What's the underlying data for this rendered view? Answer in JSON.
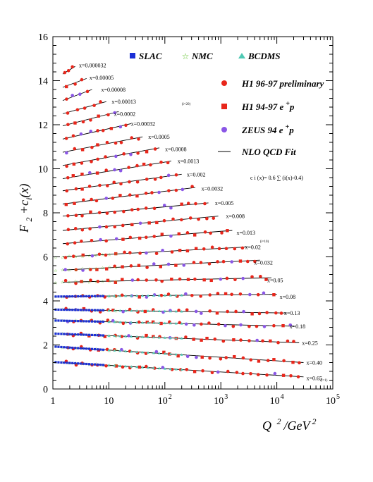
{
  "chart_data": {
    "type": "scatter",
    "xscale": "log",
    "yscale": "linear",
    "xlim": [
      1,
      100000
    ],
    "ylim": [
      0,
      16
    ],
    "ylabel": "F 2 + c i (x)",
    "xlabel": "Q 2 /GeV 2",
    "y_ticks": [
      "0",
      "2",
      "4",
      "6",
      "8",
      "10",
      "12",
      "14",
      "16"
    ],
    "x_ticks": [
      {
        "base": "1",
        "exp": ""
      },
      {
        "base": "10",
        "exp": ""
      },
      {
        "base": "10",
        "exp": "2"
      },
      {
        "base": "10",
        "exp": "3"
      },
      {
        "base": "10",
        "exp": "4"
      },
      {
        "base": "10",
        "exp": "5"
      }
    ],
    "offset_formula": "c i (x)= 0.6 ∑ (i(x)-0.4)",
    "annotations": [
      {
        "text": "(i=20)",
        "x": 200,
        "y": 12.9
      },
      {
        "text": "(i=10)",
        "x": 5000,
        "y": 6.65
      },
      {
        "text": "(i=1)",
        "x": 60000,
        "y": 0.35
      }
    ],
    "legend": {
      "row1": [
        {
          "label": "SLAC",
          "marker": "square",
          "color": "#1b2fd6"
        },
        {
          "label": "NMC",
          "marker": "star",
          "color": "#58c020"
        },
        {
          "label": "BCDMS",
          "marker": "triangle",
          "color": "#4fc9b4"
        }
      ],
      "column": [
        {
          "label": "H1 96-97 preliminary",
          "marker": "circle",
          "color": "#e8261b"
        },
        {
          "label": "H1 94-97 e +p",
          "marker": "square",
          "color": "#e8261b"
        },
        {
          "label": "ZEUS 94 e +p",
          "marker": "circle",
          "color": "#8a56e6"
        },
        {
          "label": "NLO QCD Fit",
          "marker": "line",
          "color": "#000000"
        }
      ]
    },
    "colors": {
      "H1_96_97": "#e8261b",
      "H1_94_97": "#e8261b",
      "ZEUS": "#8a56e6",
      "SLAC": "#1b2fd6",
      "NMC": "#58c020",
      "BCDMS": "#4fc9b4",
      "fit": "#000000"
    },
    "bins": [
      {
        "label": "x=0.000032",
        "fit": {
          "q2": [
            1.5,
            2.5
          ],
          "y": [
            14.3,
            14.65
          ]
        },
        "label_at": {
          "q2": 2.6,
          "y": 14.7
        }
      },
      {
        "label": "x=0.00005",
        "fit": {
          "q2": [
            1.5,
            4
          ],
          "y": [
            13.7,
            14.1
          ]
        },
        "label_at": {
          "q2": 4,
          "y": 14.15
        }
      },
      {
        "label": "x=0.00008",
        "fit": {
          "q2": [
            1.5,
            5
          ],
          "y": [
            13.1,
            13.6
          ]
        },
        "label_at": {
          "q2": 6.5,
          "y": 13.6
        }
      },
      {
        "label": "x=0.00013",
        "fit": {
          "q2": [
            1.5,
            9
          ],
          "y": [
            12.5,
            13.05
          ]
        },
        "label_at": {
          "q2": 10,
          "y": 13.05
        }
      },
      {
        "label": "x=0.0002",
        "fit": {
          "q2": [
            1.5,
            15
          ],
          "y": [
            11.95,
            12.6
          ]
        },
        "label_at": {
          "q2": 11,
          "y": 12.5
        }
      },
      {
        "label": "x=0.00032",
        "fit": {
          "q2": [
            1.5,
            25
          ],
          "y": [
            11.35,
            12.05
          ]
        },
        "label_at": {
          "q2": 22,
          "y": 12.05
        }
      },
      {
        "label": "x=0.0005",
        "fit": {
          "q2": [
            1.5,
            40
          ],
          "y": [
            10.75,
            11.45
          ]
        },
        "label_at": {
          "q2": 45,
          "y": 11.45
        }
      },
      {
        "label": "x=0.0008",
        "fit": {
          "q2": [
            1.5,
            80
          ],
          "y": [
            10.15,
            10.95
          ]
        },
        "label_at": {
          "q2": 90,
          "y": 10.9
        }
      },
      {
        "label": "x=0.0013",
        "fit": {
          "q2": [
            1.5,
            130
          ],
          "y": [
            9.55,
            10.35
          ]
        },
        "label_at": {
          "q2": 150,
          "y": 10.35
        }
      },
      {
        "label": "x=0.002",
        "fit": {
          "q2": [
            1.5,
            200
          ],
          "y": [
            9.0,
            9.75
          ]
        },
        "label_at": {
          "q2": 220,
          "y": 9.75
        }
      },
      {
        "label": "x=0.0032",
        "fit": {
          "q2": [
            1.5,
            350
          ],
          "y": [
            8.4,
            9.15
          ]
        },
        "label_at": {
          "q2": 400,
          "y": 9.1
        }
      },
      {
        "label": "x=0.005",
        "fit": {
          "q2": [
            1.5,
            600
          ],
          "y": [
            7.85,
            8.45
          ]
        },
        "label_at": {
          "q2": 700,
          "y": 8.45
        }
      },
      {
        "label": "x=0.008",
        "fit": {
          "q2": [
            1.5,
            900
          ],
          "y": [
            7.2,
            7.85
          ]
        },
        "label_at": {
          "q2": 1100,
          "y": 7.85
        }
      },
      {
        "label": "x=0.013",
        "fit": {
          "q2": [
            1.5,
            1600
          ],
          "y": [
            6.6,
            7.2
          ]
        },
        "label_at": {
          "q2": 1700,
          "y": 7.1
        }
      },
      {
        "label": "x=0.02",
        "fit": {
          "q2": [
            1.5,
            3000
          ],
          "y": [
            6.0,
            6.45
          ]
        },
        "label_at": {
          "q2": 2400,
          "y": 6.45
        }
      },
      {
        "label": "x=0.032",
        "fit": {
          "q2": [
            1.5,
            5000
          ],
          "y": [
            5.4,
            5.85
          ]
        },
        "label_at": {
          "q2": 3500,
          "y": 5.75
        }
      },
      {
        "label": "x=0.05",
        "fit": {
          "q2": [
            1.5,
            8000
          ],
          "y": [
            4.85,
            5.05
          ]
        },
        "label_at": {
          "q2": 6000,
          "y": 4.95
        }
      },
      {
        "label": "x=0.08",
        "fit": {
          "q2": [
            1.5,
            10000
          ],
          "y": [
            4.2,
            4.3
          ]
        },
        "label_at": {
          "q2": 10000,
          "y": 4.2
        }
      },
      {
        "label": "x=0.13",
        "fit": {
          "q2": [
            1.5,
            15000
          ],
          "y": [
            3.6,
            3.45
          ]
        },
        "label_at": {
          "q2": 12000,
          "y": 3.45
        }
      },
      {
        "label": "x=0.18",
        "fit": {
          "q2": [
            1.5,
            20000
          ],
          "y": [
            3.1,
            2.85
          ]
        },
        "label_at": {
          "q2": 15000,
          "y": 2.85
        }
      },
      {
        "label": "x=0.25",
        "fit": {
          "q2": [
            1.5,
            25000
          ],
          "y": [
            2.5,
            2.1
          ]
        },
        "label_at": {
          "q2": 25000,
          "y": 2.1
        }
      },
      {
        "label": "x=0.40",
        "fit": {
          "q2": [
            1.5,
            30000
          ],
          "y": [
            1.9,
            1.2
          ]
        },
        "label_at": {
          "q2": 30000,
          "y": 1.2
        }
      },
      {
        "label": "x=0.65",
        "fit": {
          "q2": [
            1.5,
            30000
          ],
          "y": [
            1.2,
            0.55
          ]
        },
        "label_at": {
          "q2": 30000,
          "y": 0.5
        }
      }
    ]
  }
}
